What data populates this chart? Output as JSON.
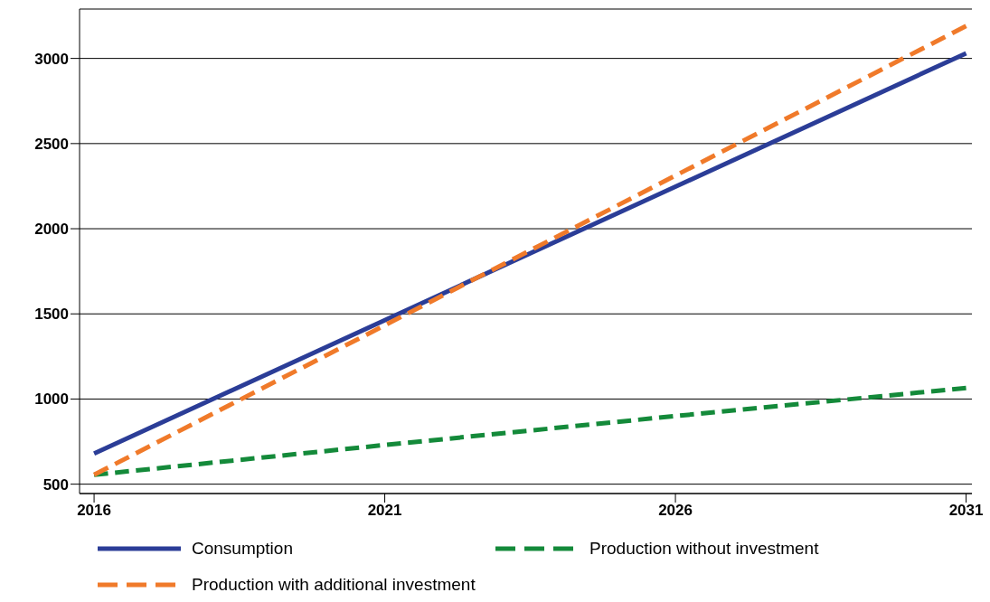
{
  "chart_data": {
    "type": "line",
    "x": [
      2016,
      2021,
      2026,
      2031
    ],
    "xlim": [
      2015.75,
      2031.1
    ],
    "xticks": [
      2016,
      2021,
      2026,
      2031
    ],
    "ylim": [
      445,
      3290
    ],
    "yticks": [
      500,
      1000,
      1500,
      2000,
      2500,
      3000
    ],
    "grid": "y",
    "legend": "bottom",
    "marker": "none",
    "series": [
      {
        "name": "Consumption",
        "color": "#2b3d97",
        "values": [
          680,
          1463,
          2247,
          3030
        ],
        "line_style": "solid"
      },
      {
        "name": "Production without investment",
        "color": "#148a3a",
        "values": [
          555,
          730,
          900,
          1065
        ],
        "line_style": "dashed"
      },
      {
        "name": "Production with additional investment",
        "color": "#f07a2a",
        "values": [
          555,
          1433,
          2312,
          3190
        ],
        "line_style": "dashed"
      }
    ]
  }
}
